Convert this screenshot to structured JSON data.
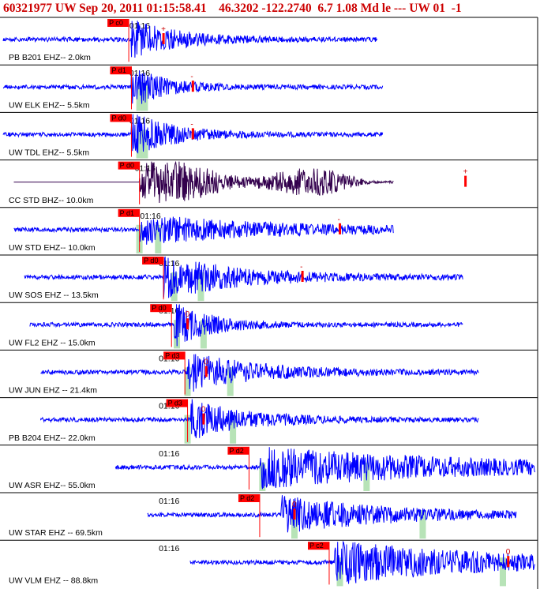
{
  "header": {
    "title": "60321977 UW Sep 20, 2011 01:15:58.41    46.3202 -122.2740  6.7 1.08 Md le --- UW 01  -1"
  },
  "chart_data": {
    "type": "line",
    "time_tick_label": "01:16",
    "colors": {
      "trace": "#0000ff",
      "bhz_trace": "#33004d",
      "pick_box": "#ff0000",
      "coda_window": "#b7e3b7",
      "frame": "#000000"
    },
    "traces": [
      {
        "label": "PB B201 EHZ-- 2.0km",
        "component": "EHZ",
        "pick": "P c0",
        "pick_t": 0.235,
        "end_mark": "+",
        "end_t": 0.3,
        "tick_t": 0.245,
        "start_t": 0.0,
        "stop_t": 0.7,
        "windows": [],
        "amp": 0.4,
        "onset_t": 0.24,
        "decay": 0.09
      },
      {
        "label": "UW ELK EHZ-- 5.5km",
        "component": "EHZ",
        "pick": "P d1",
        "pick_t": 0.24,
        "end_mark": "-",
        "end_t": 0.355,
        "tick_t": 0.245,
        "start_t": 0.0,
        "stop_t": 0.71,
        "windows": [
          0.255,
          0.265
        ],
        "amp": 0.45,
        "onset_t": 0.24,
        "decay": 0.06
      },
      {
        "label": "UW TDL EHZ-- 5.5km",
        "component": "EHZ",
        "pick": "P d0",
        "pick_t": 0.24,
        "end_mark": "-",
        "end_t": 0.355,
        "tick_t": 0.245,
        "start_t": 0.0,
        "stop_t": 0.71,
        "windows": [
          0.255,
          0.265
        ],
        "amp": 0.45,
        "onset_t": 0.24,
        "decay": 0.08
      },
      {
        "label": "CC STD BHZ-- 10.0km",
        "component": "BHZ",
        "pick": "P d0",
        "pick_t": 0.255,
        "end_mark": "+",
        "end_t": 0.865,
        "tick_t": 0.255,
        "start_t": 0.02,
        "stop_t": 0.73,
        "windows": [],
        "amp": 0.35,
        "onset_t": 0.255,
        "decay": 0.35
      },
      {
        "label": "UW STD EHZ-- 10.0km",
        "component": "EHZ",
        "pick": "P d1",
        "pick_t": 0.255,
        "end_mark": "-",
        "end_t": 0.63,
        "tick_t": 0.265,
        "start_t": 0.02,
        "stop_t": 0.73,
        "windows": [
          0.255,
          0.29
        ],
        "amp": 0.3,
        "onset_t": 0.255,
        "decay": 0.25
      },
      {
        "label": "UW SOS EHZ -- 13.5km",
        "component": "EHZ",
        "pick": "P d0",
        "pick_t": 0.3,
        "end_mark": "-",
        "end_t": 0.56,
        "tick_t": 0.3,
        "start_t": 0.04,
        "stop_t": 0.86,
        "windows": [
          0.32,
          0.37
        ],
        "amp": 0.45,
        "onset_t": 0.3,
        "decay": 0.15
      },
      {
        "label": "UW FL2 EHZ -- 15.0km",
        "component": "EHZ",
        "pick": "P d0",
        "pick_t": 0.315,
        "end_mark": "0",
        "end_t": 0.345,
        "tick_t": 0.3,
        "start_t": 0.05,
        "stop_t": 0.86,
        "windows": [
          0.325,
          0.375
        ],
        "amp": 0.45,
        "onset_t": 0.32,
        "decay": 0.07
      },
      {
        "label": "UW JUN EHZ -- 21.4km",
        "component": "EHZ",
        "pick": "P d3",
        "pick_t": 0.34,
        "end_mark": "0",
        "end_t": 0.38,
        "tick_t": 0.3,
        "start_t": 0.07,
        "stop_t": 0.89,
        "windows": [
          0.345,
          0.425
        ],
        "amp": 0.4,
        "onset_t": 0.345,
        "decay": 0.14
      },
      {
        "label": "PB B204 EHZ-- 22.0km",
        "component": "EHZ",
        "pick": "P d3",
        "pick_t": 0.345,
        "end_mark": "0",
        "end_t": 0.375,
        "tick_t": 0.3,
        "start_t": 0.07,
        "stop_t": 0.89,
        "windows": [
          0.345,
          0.43
        ],
        "amp": 0.4,
        "onset_t": 0.35,
        "decay": 0.11
      },
      {
        "label": "UW ASR EHZ-- 55.0km",
        "component": "EHZ",
        "pick": "P d2",
        "pick_t": 0.46,
        "end_mark": "",
        "end_t": null,
        "tick_t": 0.3,
        "start_t": 0.21,
        "stop_t": 0.995,
        "windows": [
          0.485,
          0.68
        ],
        "amp": 0.42,
        "onset_t": 0.48,
        "decay": 0.4
      },
      {
        "label": "UW STAR EHZ -- 69.5km",
        "component": "EHZ",
        "pick": "P d2",
        "pick_t": 0.48,
        "end_mark": "0",
        "end_t": 0.545,
        "tick_t": 0.3,
        "start_t": 0.27,
        "stop_t": 0.96,
        "windows": [
          0.545,
          0.785
        ],
        "amp": 0.38,
        "onset_t": 0.52,
        "decay": 0.2
      },
      {
        "label": "UW VLM EHZ -- 88.8km",
        "component": "EHZ",
        "pick": "P c2",
        "pick_t": 0.61,
        "end_mark": "0",
        "end_t": 0.945,
        "tick_t": 0.3,
        "start_t": 0.35,
        "stop_t": 0.995,
        "windows": [
          0.63,
          0.935
        ],
        "amp": 0.45,
        "onset_t": 0.62,
        "decay": 0.3
      }
    ]
  }
}
